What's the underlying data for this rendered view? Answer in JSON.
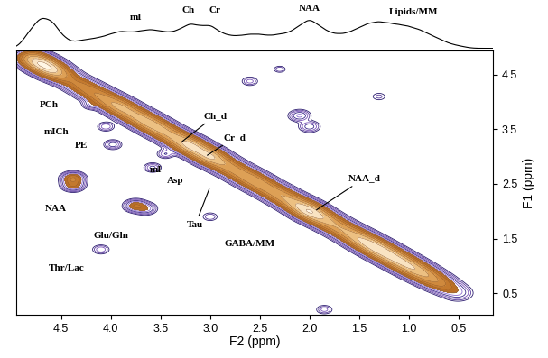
{
  "chart_data": {
    "type": "contour",
    "x_label": "F2 (ppm)",
    "y_label": "F1 (ppm)",
    "xlim": [
      4.95,
      0.15
    ],
    "ylim": [
      0.1,
      4.95
    ],
    "xticks": [
      4.5,
      {
        "value": 4,
        "label": "4.0"
      },
      3.5,
      {
        "value": 3,
        "label": "3.0"
      },
      2.5,
      {
        "value": 2,
        "label": "2.0"
      },
      1.5,
      {
        "value": 1,
        "label": "1.0"
      },
      0.5
    ],
    "yticks": [
      0.5,
      1.5,
      2.5,
      3.5,
      4.5
    ],
    "levels": [
      0.015,
      0.025,
      0.04,
      0.06,
      0.09,
      0.13,
      0.2,
      0.3,
      0.45,
      0.65,
      0.9,
      1.2
    ],
    "peaks": [
      {
        "f2": 4.8,
        "f1": 4.8,
        "height": 0.6,
        "width": 0.08
      },
      {
        "f2": 4.7,
        "f1": 4.7,
        "height": 1.0,
        "width": 0.08
      },
      {
        "f2": 4.6,
        "f1": 4.6,
        "height": 0.9,
        "width": 0.08
      },
      {
        "f2": 4.5,
        "f1": 4.5,
        "height": 0.4,
        "width": 0.08
      },
      {
        "f2": 4.4,
        "f1": 4.4,
        "height": 0.2,
        "width": 0.08
      },
      {
        "f2": 4.3,
        "f1": 4.3,
        "height": 0.25,
        "width": 0.08
      },
      {
        "f2": 4.2,
        "f1": 4.2,
        "height": 0.3,
        "width": 0.08
      },
      {
        "f2": 4.1,
        "f1": 4.1,
        "height": 0.35,
        "width": 0.08
      },
      {
        "f2": 4.0,
        "f1": 4.0,
        "height": 0.45,
        "width": 0.08
      },
      {
        "f2": 3.9,
        "f1": 3.9,
        "height": 0.55,
        "width": 0.08
      },
      {
        "f2": 3.8,
        "f1": 3.8,
        "height": 0.5,
        "width": 0.08
      },
      {
        "f2": 3.7,
        "f1": 3.7,
        "height": 0.55,
        "width": 0.08
      },
      {
        "f2": 3.6,
        "f1": 3.6,
        "height": 0.6,
        "width": 0.08
      },
      {
        "f2": 3.5,
        "f1": 3.5,
        "height": 0.55,
        "width": 0.08
      },
      {
        "f2": 3.4,
        "f1": 3.4,
        "height": 0.5,
        "width": 0.08
      },
      {
        "f2": 3.3,
        "f1": 3.3,
        "height": 0.6,
        "width": 0.08
      },
      {
        "f2": 3.2,
        "f1": 3.2,
        "height": 0.8,
        "width": 0.08
      },
      {
        "f2": 3.1,
        "f1": 3.1,
        "height": 0.7,
        "width": 0.08
      },
      {
        "f2": 3.0,
        "f1": 3.0,
        "height": 0.75,
        "width": 0.08
      },
      {
        "f2": 2.9,
        "f1": 2.9,
        "height": 0.5,
        "width": 0.08
      },
      {
        "f2": 2.8,
        "f1": 2.8,
        "height": 0.4,
        "width": 0.08
      },
      {
        "f2": 2.7,
        "f1": 2.7,
        "height": 0.4,
        "width": 0.08
      },
      {
        "f2": 2.6,
        "f1": 2.6,
        "height": 0.45,
        "width": 0.08
      },
      {
        "f2": 2.5,
        "f1": 2.5,
        "height": 0.45,
        "width": 0.08
      },
      {
        "f2": 2.4,
        "f1": 2.4,
        "height": 0.4,
        "width": 0.08
      },
      {
        "f2": 2.3,
        "f1": 2.3,
        "height": 0.45,
        "width": 0.08
      },
      {
        "f2": 2.2,
        "f1": 2.2,
        "height": 0.5,
        "width": 0.08
      },
      {
        "f2": 2.1,
        "f1": 2.1,
        "height": 0.7,
        "width": 0.08
      },
      {
        "f2": 2.0,
        "f1": 2.0,
        "height": 0.95,
        "width": 0.08
      },
      {
        "f2": 1.9,
        "f1": 1.9,
        "height": 0.7,
        "width": 0.08
      },
      {
        "f2": 1.8,
        "f1": 1.8,
        "height": 0.5,
        "width": 0.08
      },
      {
        "f2": 1.7,
        "f1": 1.7,
        "height": 0.45,
        "width": 0.08
      },
      {
        "f2": 1.6,
        "f1": 1.6,
        "height": 0.5,
        "width": 0.08
      },
      {
        "f2": 1.5,
        "f1": 1.5,
        "height": 0.65,
        "width": 0.08
      },
      {
        "f2": 1.4,
        "f1": 1.4,
        "height": 0.8,
        "width": 0.08
      },
      {
        "f2": 1.3,
        "f1": 1.3,
        "height": 0.85,
        "width": 0.08
      },
      {
        "f2": 1.2,
        "f1": 1.2,
        "height": 0.8,
        "width": 0.08
      },
      {
        "f2": 1.1,
        "f1": 1.1,
        "height": 0.75,
        "width": 0.08
      },
      {
        "f2": 1.0,
        "f1": 1.0,
        "height": 0.7,
        "width": 0.08
      },
      {
        "f2": 0.9,
        "f1": 0.9,
        "height": 0.6,
        "width": 0.08
      },
      {
        "f2": 0.8,
        "f1": 0.8,
        "height": 0.45,
        "width": 0.08
      },
      {
        "f2": 0.7,
        "f1": 0.7,
        "height": 0.3,
        "width": 0.08
      },
      {
        "f2": 0.6,
        "f1": 0.6,
        "height": 0.15,
        "width": 0.08
      },
      {
        "f2": 0.5,
        "f1": 0.5,
        "height": 0.08,
        "width": 0.08
      },
      {
        "f2": 4.38,
        "f1": 2.6,
        "height": 0.3,
        "width": 0.06
      },
      {
        "f2": 4.38,
        "f1": 2.48,
        "height": 0.2,
        "width": 0.06
      },
      {
        "f2": 3.75,
        "f1": 2.1,
        "height": 0.2,
        "width": 0.06
      },
      {
        "f2": 3.65,
        "f1": 2.05,
        "height": 0.12,
        "width": 0.06
      },
      {
        "f2": 4.1,
        "f1": 1.3,
        "height": 0.06,
        "width": 0.05
      },
      {
        "f2": 3.98,
        "f1": 3.22,
        "height": 0.08,
        "width": 0.05
      },
      {
        "f2": 4.05,
        "f1": 3.55,
        "height": 0.06,
        "width": 0.05
      },
      {
        "f2": 4.2,
        "f1": 3.95,
        "height": 0.06,
        "width": 0.05
      },
      {
        "f2": 3.45,
        "f1": 3.05,
        "height": 0.06,
        "width": 0.05
      },
      {
        "f2": 3.58,
        "f1": 2.8,
        "height": 0.07,
        "width": 0.05
      },
      {
        "f2": 3.0,
        "f1": 1.9,
        "height": 0.04,
        "width": 0.05
      },
      {
        "f2": 2.1,
        "f1": 3.75,
        "height": 0.1,
        "width": 0.06
      },
      {
        "f2": 2.0,
        "f1": 3.55,
        "height": 0.08,
        "width": 0.06
      },
      {
        "f2": 2.6,
        "f1": 4.38,
        "height": 0.05,
        "width": 0.05
      },
      {
        "f2": 1.3,
        "f1": 4.1,
        "height": 0.03,
        "width": 0.05
      },
      {
        "f2": 2.3,
        "f1": 4.6,
        "height": 0.04,
        "width": 0.04
      },
      {
        "f2": 1.85,
        "f1": 0.2,
        "height": 0.05,
        "width": 0.05
      }
    ],
    "annotations": [
      {
        "text": "PCh",
        "x": 4.62,
        "y": 3.95
      },
      {
        "text": "mICh",
        "x": 4.55,
        "y": 3.45
      },
      {
        "text": "PE",
        "x": 4.3,
        "y": 3.2
      },
      {
        "text": "mI",
        "x": 3.55,
        "y": 2.75
      },
      {
        "text": "Asp",
        "x": 3.35,
        "y": 2.55
      },
      {
        "text": "NAA",
        "x": 4.55,
        "y": 2.05
      },
      {
        "text": "Glu/Gln",
        "x": 4.0,
        "y": 1.55
      },
      {
        "text": "Thr/Lac",
        "x": 4.45,
        "y": 0.95
      },
      {
        "text": "Tau",
        "x": 3.15,
        "y": 1.75,
        "target": [
          3.0,
          2.45
        ]
      },
      {
        "text": "GABA/MM",
        "x": 2.6,
        "y": 1.4
      },
      {
        "text": "Ch_d",
        "x": 2.95,
        "y": 3.75,
        "target": [
          3.3,
          3.25
        ]
      },
      {
        "text": "Cr_d",
        "x": 2.75,
        "y": 3.35,
        "target": [
          3.05,
          3.0
        ]
      },
      {
        "text": "NAA_d",
        "x": 1.45,
        "y": 2.6,
        "target": [
          1.95,
          2.0
        ]
      }
    ],
    "projection": {
      "type": "line",
      "color": "#000000",
      "ylim": [
        0,
        2.0
      ],
      "tick_labels": false,
      "annotations": [
        {
          "text": "mI",
          "x": 3.75,
          "y": 1.2
        },
        {
          "text": "Ch",
          "x": 3.22,
          "y": 1.5
        },
        {
          "text": "Cr",
          "x": 2.95,
          "y": 1.5
        },
        {
          "text": "NAA",
          "x": 2.0,
          "y": 1.6
        },
        {
          "text": "Lipids/MM",
          "x": 0.95,
          "y": 1.45
        }
      ]
    }
  }
}
